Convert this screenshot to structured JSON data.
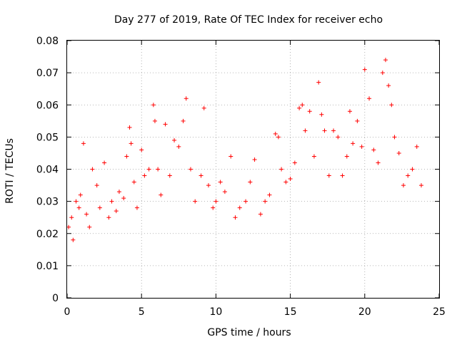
{
  "chart_data": {
    "type": "scatter",
    "title": "Day 277 of 2019, Rate Of TEC Index for receiver echo",
    "xlabel": "GPS time / hours",
    "ylabel": "ROTI / TECUs",
    "xlim": [
      0,
      25
    ],
    "ylim": [
      0,
      0.08
    ],
    "xticks": [
      "0",
      "5",
      "10",
      "15",
      "20",
      "25"
    ],
    "yticks": [
      "0",
      "0.01",
      "0.02",
      "0.03",
      "0.04",
      "0.05",
      "0.06",
      "0.07",
      "0.08"
    ],
    "grid": true,
    "marker": "+",
    "colors": {
      "series": "#ff0000",
      "grid": "#a0a0a0",
      "axis": "#000000"
    },
    "series": [
      {
        "x": [
          0.1,
          0.3,
          0.4,
          0.6,
          0.8,
          0.9,
          1.1,
          1.3,
          1.5,
          1.7,
          2.0,
          2.2,
          2.5,
          2.8,
          3.0,
          3.3,
          3.5,
          3.8,
          4.0,
          4.2,
          4.3,
          4.5,
          4.7,
          5.0,
          5.2,
          5.5,
          5.8,
          5.9,
          6.1,
          6.3,
          6.6,
          6.9,
          7.2,
          7.5,
          7.8,
          8.0,
          8.3,
          8.6,
          9.0,
          9.2,
          9.5,
          9.8,
          10.0,
          10.3,
          10.6,
          11.0,
          11.3,
          11.6,
          12.0,
          12.3,
          12.6,
          13.0,
          13.3,
          13.6,
          14.0,
          14.2,
          14.4,
          14.7,
          15.0,
          15.3,
          15.6,
          15.8,
          16.0,
          16.3,
          16.6,
          16.9,
          17.1,
          17.3,
          17.6,
          17.9,
          18.2,
          18.5,
          18.8,
          19.0,
          19.2,
          19.5,
          19.8,
          20.0,
          20.3,
          20.6,
          20.9,
          21.2,
          21.4,
          21.6,
          21.8,
          22.0,
          22.3,
          22.6,
          22.9,
          23.2,
          23.5,
          23.8
        ],
        "y": [
          0.022,
          0.025,
          0.018,
          0.03,
          0.028,
          0.032,
          0.048,
          0.026,
          0.022,
          0.04,
          0.035,
          0.028,
          0.042,
          0.025,
          0.03,
          0.027,
          0.033,
          0.031,
          0.044,
          0.053,
          0.048,
          0.036,
          0.028,
          0.046,
          0.038,
          0.04,
          0.06,
          0.055,
          0.04,
          0.032,
          0.054,
          0.038,
          0.049,
          0.047,
          0.055,
          0.062,
          0.04,
          0.03,
          0.038,
          0.059,
          0.035,
          0.028,
          0.03,
          0.036,
          0.033,
          0.044,
          0.025,
          0.028,
          0.03,
          0.036,
          0.043,
          0.026,
          0.03,
          0.032,
          0.051,
          0.05,
          0.04,
          0.036,
          0.037,
          0.042,
          0.059,
          0.06,
          0.052,
          0.058,
          0.044,
          0.067,
          0.057,
          0.052,
          0.038,
          0.052,
          0.05,
          0.038,
          0.044,
          0.058,
          0.048,
          0.055,
          0.047,
          0.071,
          0.062,
          0.046,
          0.042,
          0.07,
          0.074,
          0.066,
          0.06,
          0.05,
          0.045,
          0.035,
          0.038,
          0.04,
          0.047,
          0.035
        ]
      }
    ]
  }
}
